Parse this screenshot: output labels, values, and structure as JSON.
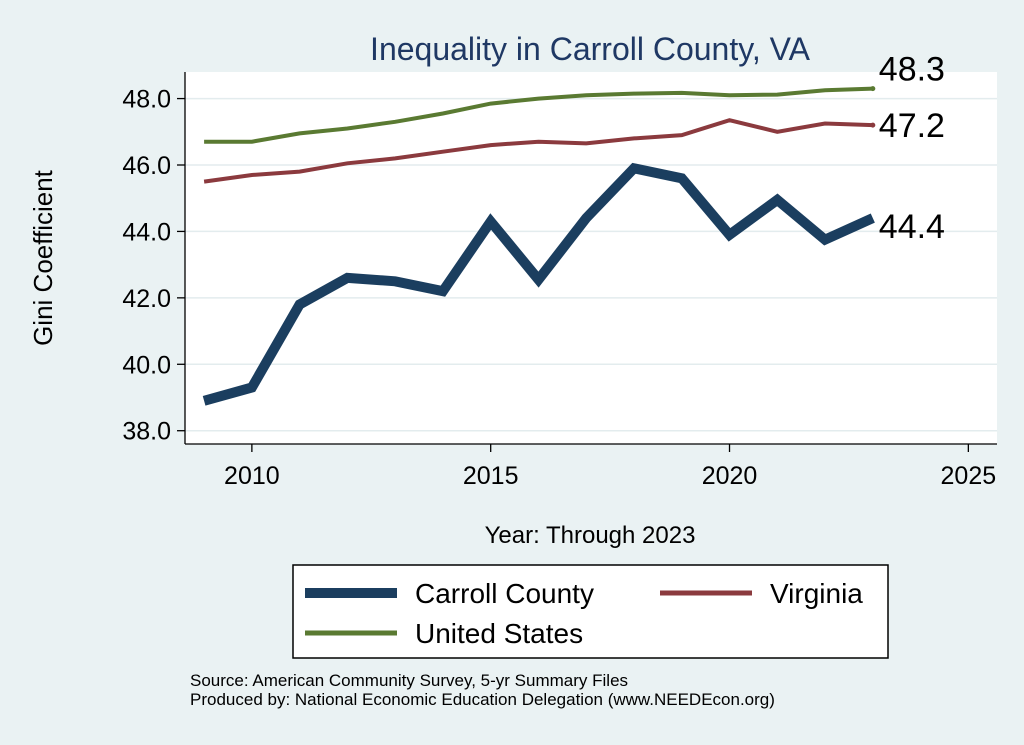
{
  "chart_data": {
    "type": "line",
    "title": "Inequality in Carroll County, VA",
    "xlabel": "Year: Through 2023",
    "ylabel": "Gini Coefficient",
    "xlim": [
      2008.6,
      2025.6
    ],
    "ylim": [
      37.6,
      48.8
    ],
    "x_ticks": [
      2010,
      2015,
      2020,
      2025
    ],
    "y_ticks": [
      38.0,
      40.0,
      42.0,
      44.0,
      46.0,
      48.0
    ],
    "y_tick_labels": [
      "38.0",
      "40.0",
      "42.0",
      "44.0",
      "46.0",
      "48.0"
    ],
    "x": [
      2009,
      2010,
      2011,
      2012,
      2013,
      2014,
      2015,
      2016,
      2017,
      2018,
      2019,
      2020,
      2021,
      2022,
      2023
    ],
    "series": [
      {
        "name": "United States",
        "color": "#5a7a32",
        "values": [
          46.7,
          46.7,
          46.95,
          47.1,
          47.3,
          47.55,
          47.85,
          48.0,
          48.1,
          48.15,
          48.17,
          48.1,
          48.12,
          48.25,
          48.3
        ],
        "end_label": "48.3"
      },
      {
        "name": "Virginia",
        "color": "#8b3a3e",
        "values": [
          45.5,
          45.7,
          45.8,
          46.05,
          46.2,
          46.4,
          46.6,
          46.7,
          46.65,
          46.8,
          46.9,
          47.35,
          47.0,
          47.25,
          47.2
        ],
        "end_label": "47.2"
      },
      {
        "name": "Carroll County",
        "color": "#1b3e5f",
        "values": [
          38.9,
          39.3,
          41.8,
          42.6,
          42.5,
          42.2,
          44.3,
          42.55,
          44.4,
          45.9,
          45.6,
          43.9,
          44.95,
          43.75,
          44.4
        ],
        "end_label": "44.4"
      }
    ],
    "legend": [
      {
        "name": "Carroll County",
        "color": "#1b3e5f"
      },
      {
        "name": "Virginia",
        "color": "#8b3a3e"
      },
      {
        "name": "United States",
        "color": "#5a7a32"
      }
    ],
    "legend_position": "bottom",
    "grid": true
  },
  "footer": {
    "source": "Source: American Community Survey, 5-yr Summary Files",
    "produced_by": "Produced by: National Economic Education Delegation (www.NEEDEcon.org)"
  },
  "colors": {
    "background": "#eaf2f3",
    "plot_background": "#ffffff",
    "title": "#1f3864"
  }
}
